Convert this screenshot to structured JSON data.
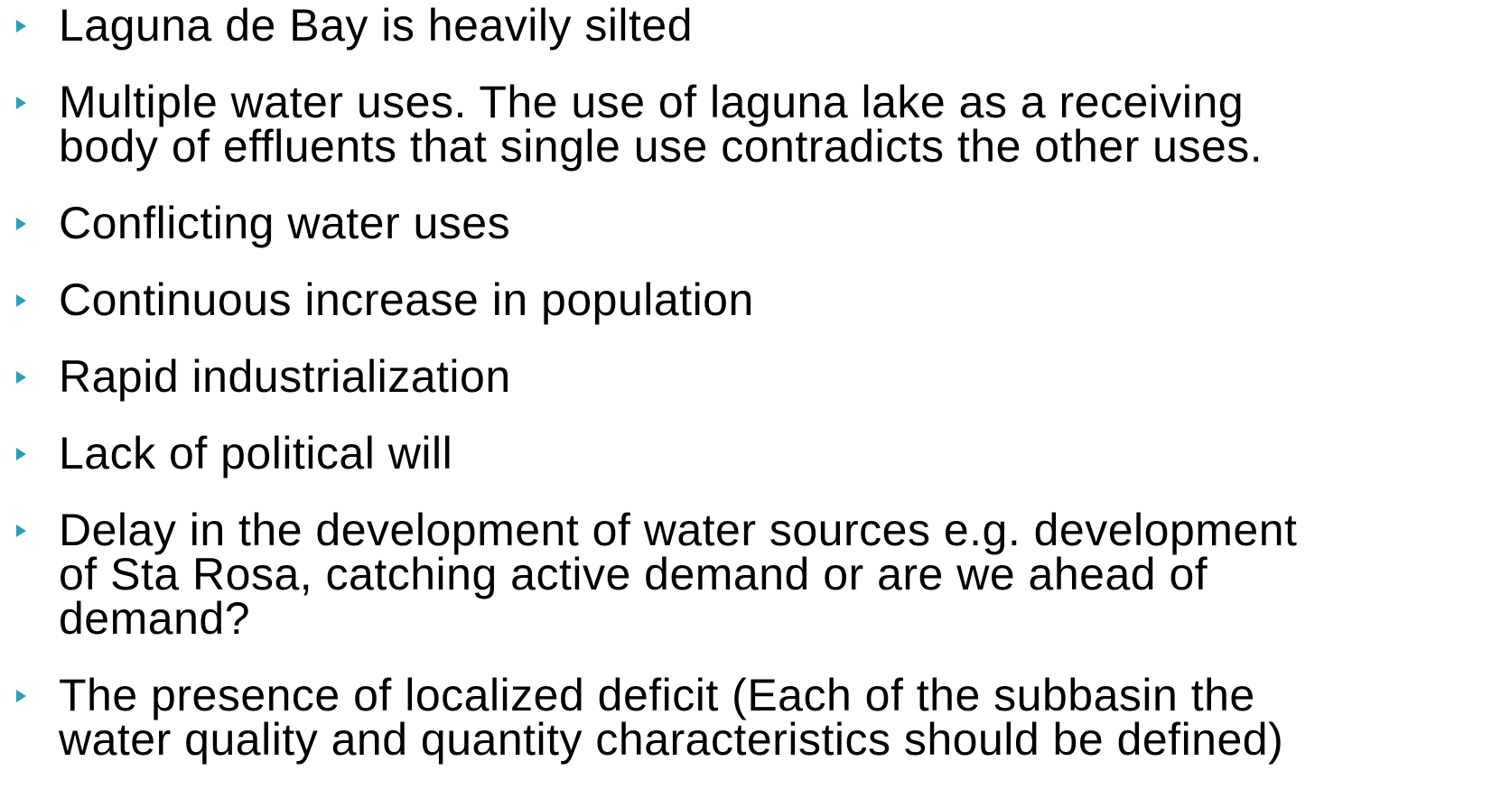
{
  "bullets": [
    {
      "lines": [
        "Laguna de Bay is heavily silted"
      ]
    },
    {
      "lines": [
        "Multiple water uses. The use of laguna lake as a receiving",
        "body of effluents that single use contradicts the other uses."
      ]
    },
    {
      "lines": [
        "Conflicting water uses"
      ]
    },
    {
      "lines": [
        "Continuous increase in population"
      ]
    },
    {
      "lines": [
        "Rapid industrialization"
      ]
    },
    {
      "lines": [
        "Lack of political will"
      ]
    },
    {
      "lines": [
        "Delay in the development of water sources e.g. development",
        "of Sta Rosa, catching active demand or are we ahead of",
        "demand?"
      ]
    },
    {
      "lines": [
        "The presence of localized deficit (Each of the subbasin the",
        "water quality and quantity characteristics should be defined)"
      ]
    }
  ]
}
